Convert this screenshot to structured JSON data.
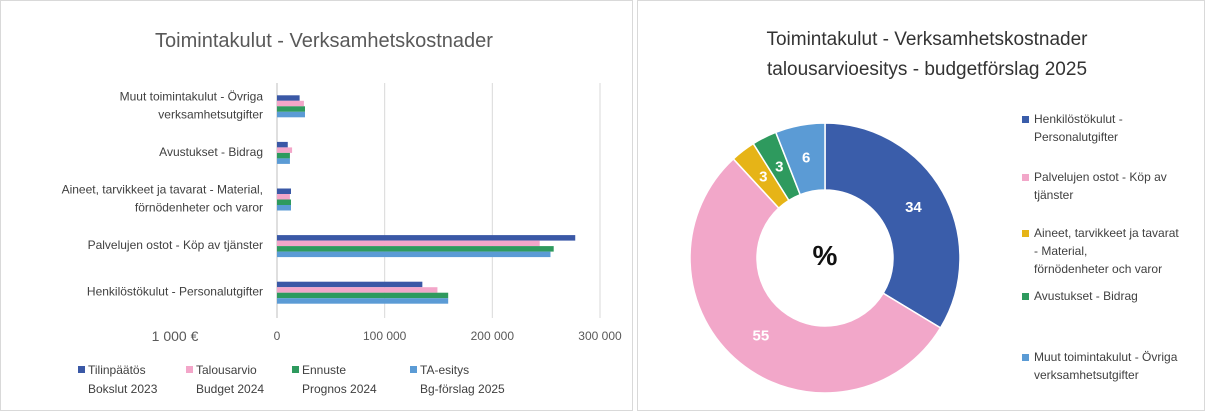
{
  "chart_data": [
    {
      "type": "barh",
      "title": "Toimintakulut - Verksamhetskostnader",
      "categories": [
        "Muut toimintakulut - Övriga\nverksamhetsutgifter",
        "Avustukset - Bidrag",
        "Aineet, tarvikkeet ja tavarat - Material,\nförnödenheter och varor",
        "Palvelujen ostot - Köp av tjänster",
        "Henkilöstökulut - Personalutgifter"
      ],
      "series": [
        {
          "name": "Tilinpäätös\nBokslut 2023",
          "color": "#3a58a6",
          "values": [
            21000,
            10000,
            13000,
            277000,
            135000
          ]
        },
        {
          "name": "Talousarvio\nBudget 2024",
          "color": "#f3a6c9",
          "values": [
            25000,
            14000,
            12000,
            244000,
            149000
          ]
        },
        {
          "name": "Ennuste\nPrognos 2024",
          "color": "#2e9a5e",
          "values": [
            26000,
            12000,
            13000,
            257000,
            159000
          ]
        },
        {
          "name": "TA-esitys\nBg-förslag 2025",
          "color": "#5b9bd5",
          "values": [
            26000,
            12000,
            13000,
            254000,
            159000
          ]
        }
      ],
      "xlabel": "1 000 €",
      "xlim": [
        0,
        300000
      ],
      "xticks": [
        0,
        {
          "value": 100000,
          "label": "100 000"
        },
        {
          "value": 200000,
          "label": "200 000"
        },
        {
          "value": 300000,
          "label": "300 000"
        }
      ],
      "grid": true,
      "legend": "bottom"
    },
    {
      "type": "donut",
      "title": "Toimintakulut - Verksamhetskostnader\ntalousarvioesitys - budgetförslag 2025",
      "center_label": "%",
      "categories": [
        "Henkilöstökulut -\nPersonalutgifter",
        "Palvelujen ostot - Köp av\ntjänster",
        "Aineet, tarvikkeet ja tavarat\n- Material,\nförnödenheter och varor",
        "Avustukset - Bidrag",
        "Muut toimintakulut - Övriga\nverksamhetsutgifter"
      ],
      "values": [
        34,
        55,
        3,
        3,
        6
      ],
      "colors": [
        "#3a5daa",
        "#f2a7c9",
        "#e6b417",
        "#2e9a5e",
        "#5b9bd5"
      ],
      "legend": "right"
    }
  ]
}
